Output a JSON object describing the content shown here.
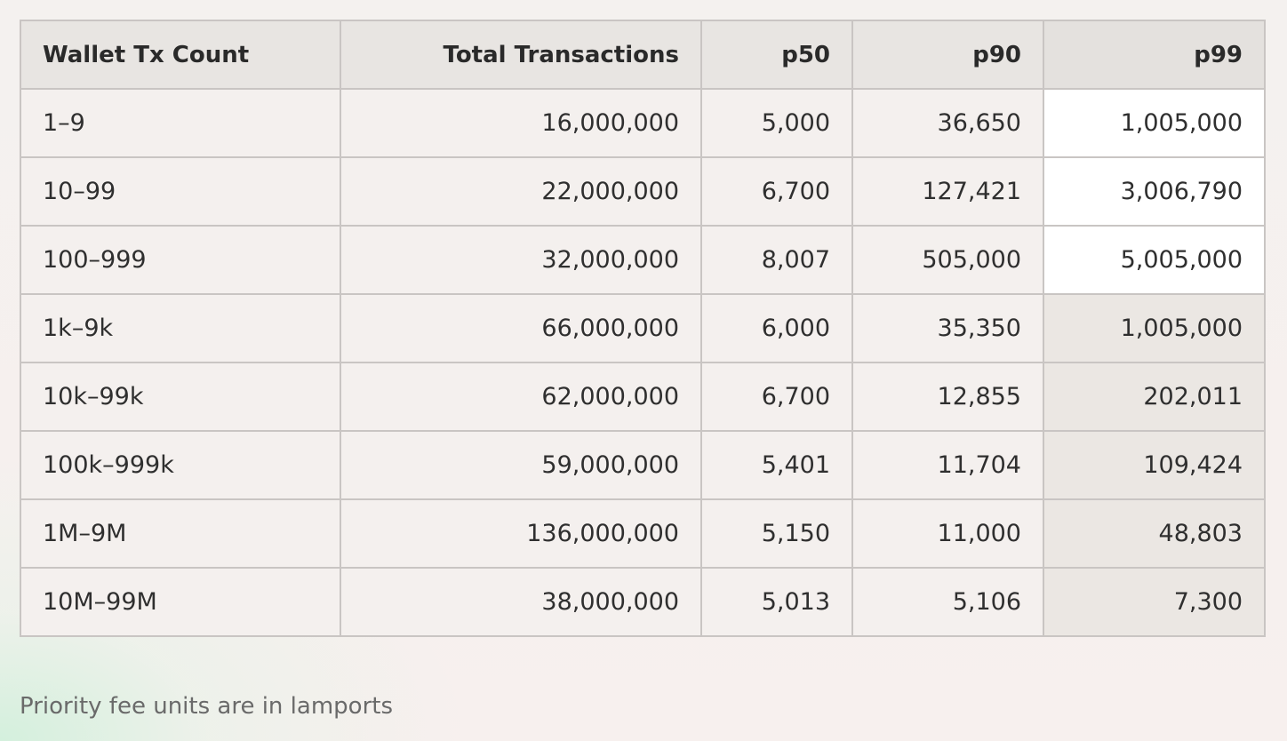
{
  "table": {
    "headers": [
      "Wallet Tx Count",
      "Total Transactions",
      "p50",
      "p90",
      "p99"
    ],
    "rows": [
      [
        "1–9",
        "16,000,000",
        "5,000",
        "36,650",
        "1,005,000"
      ],
      [
        "10–99",
        "22,000,000",
        "6,700",
        "127,421",
        "3,006,790"
      ],
      [
        "100–999",
        "32,000,000",
        "8,007",
        "505,000",
        "5,005,000"
      ],
      [
        "1k–9k",
        "66,000,000",
        "6,000",
        "35,350",
        "1,005,000"
      ],
      [
        "10k–99k",
        "62,000,000",
        "6,700",
        "12,855",
        "202,011"
      ],
      [
        "100k–999k",
        "59,000,000",
        "5,401",
        "11,704",
        "109,424"
      ],
      [
        "1M–9M",
        "136,000,000",
        "5,150",
        "11,000",
        "48,803"
      ],
      [
        "10M–99M",
        "38,000,000",
        "5,013",
        "5,106",
        "7,300"
      ]
    ]
  },
  "footnote": "Priority fee units are in lamports"
}
